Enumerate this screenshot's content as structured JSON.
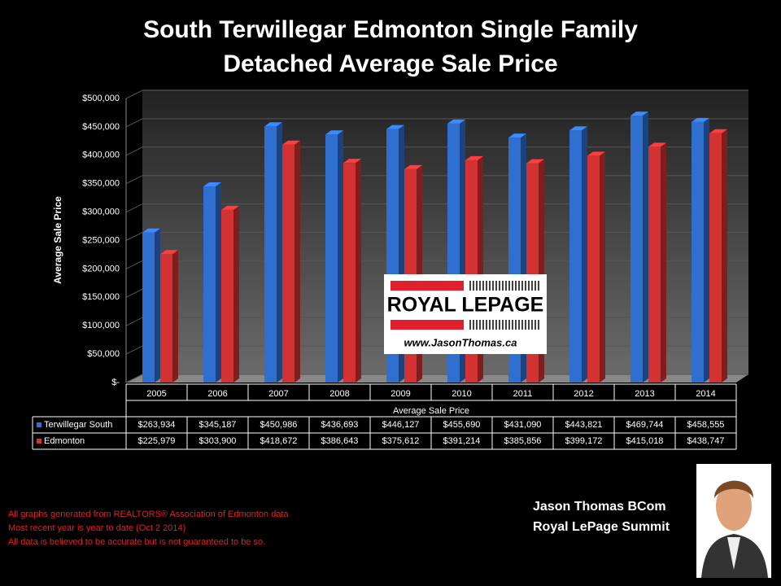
{
  "chart_data": {
    "type": "bar",
    "title": [
      "South Terwillegar Edmonton Single Family",
      "Detached Average Sale Price"
    ],
    "y_label": "Average Sale Price",
    "x_label": "Average Sale Price",
    "categories": [
      "2005",
      "2006",
      "2007",
      "2008",
      "2009",
      "2010",
      "2011",
      "2012",
      "2013",
      "2014"
    ],
    "series": [
      {
        "name": "Terwillegar South",
        "color": "#2f6fd0",
        "values": [
          263934,
          345187,
          450986,
          436693,
          446127,
          455690,
          431090,
          443821,
          469744,
          458555
        ],
        "value_labels": [
          "$263,934",
          "$345,187",
          "$450,986",
          "$436,693",
          "$446,127",
          "$455,690",
          "$431,090",
          "$443,821",
          "$469,744",
          "$458,555"
        ]
      },
      {
        "name": "Edmonton",
        "color": "#d23232",
        "values": [
          225979,
          303900,
          418672,
          386643,
          375612,
          391214,
          385856,
          399172,
          415018,
          438747
        ],
        "value_labels": [
          "$225,979",
          "$303,900",
          "$418,672",
          "$386,643",
          "$375,612",
          "$391,214",
          "$385,856",
          "$399,172",
          "$415,018",
          "$438,747"
        ]
      }
    ],
    "ylim": [
      0,
      500000
    ],
    "yticks": [
      {
        "value": 0,
        "label": "$-"
      },
      {
        "value": 50000,
        "label": "$50,000"
      },
      {
        "value": 100000,
        "label": "$100,000"
      },
      {
        "value": 150000,
        "label": "$150,000"
      },
      {
        "value": 200000,
        "label": "$200,000"
      },
      {
        "value": 250000,
        "label": "$250,000"
      },
      {
        "value": 300000,
        "label": "$300,000"
      },
      {
        "value": 350000,
        "label": "$350,000"
      },
      {
        "value": 400000,
        "label": "$400,000"
      },
      {
        "value": 450000,
        "label": "$450,000"
      },
      {
        "value": 500000,
        "label": "$500,000"
      }
    ],
    "grid": true
  },
  "logo": {
    "brand": "ROYAL LEPAGE",
    "url": "www.JasonThomas.ca"
  },
  "footnotes": [
    "All graphs generated from REALTORS® Association of Edmonton data",
    "Most recent year is year to date (Oct 2 2014)",
    "All data is believed to be accurate but is not guaranteed to be so."
  ],
  "author": {
    "name": "Jason Thomas BCom",
    "company": "Royal LePage Summit"
  }
}
